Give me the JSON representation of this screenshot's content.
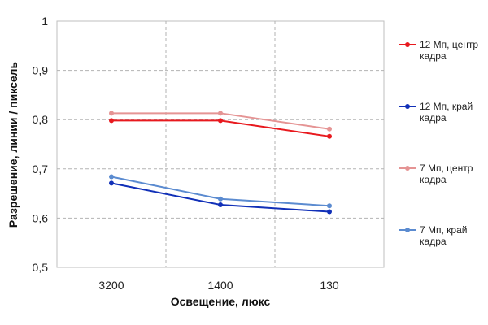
{
  "chart_data": {
    "type": "line",
    "categories": [
      "3200",
      "1400",
      "130"
    ],
    "xlabel": "Освещение,  люкс",
    "ylabel": "Разрешение,  линии  / пиксель",
    "ylim": [
      0.5,
      1
    ],
    "yticks": [
      "0,5",
      "0,6",
      "0,7",
      "0,8",
      "0,9",
      "1"
    ],
    "grid": true,
    "legend_position": "right",
    "series": [
      {
        "name": "12 Мп, центр кадра",
        "name_lines": [
          "12 Мп, центр",
          "кадра"
        ],
        "values": [
          0.798,
          0.798,
          0.766
        ],
        "color": "#e8191e"
      },
      {
        "name": "12 Мп, край кадра",
        "name_lines": [
          "12 Мп, край",
          "кадра"
        ],
        "values": [
          0.671,
          0.627,
          0.613
        ],
        "color": "#1130b8"
      },
      {
        "name": "7 Мп, центр кадра",
        "name_lines": [
          "7 Мп, центр",
          "кадра"
        ],
        "values": [
          0.813,
          0.813,
          0.781
        ],
        "color": "#e59494"
      },
      {
        "name": "7 Мп, край кадра",
        "name_lines": [
          "7 Мп, край",
          "кадра"
        ],
        "values": [
          0.684,
          0.639,
          0.625
        ],
        "color": "#5b8bd0"
      }
    ]
  }
}
